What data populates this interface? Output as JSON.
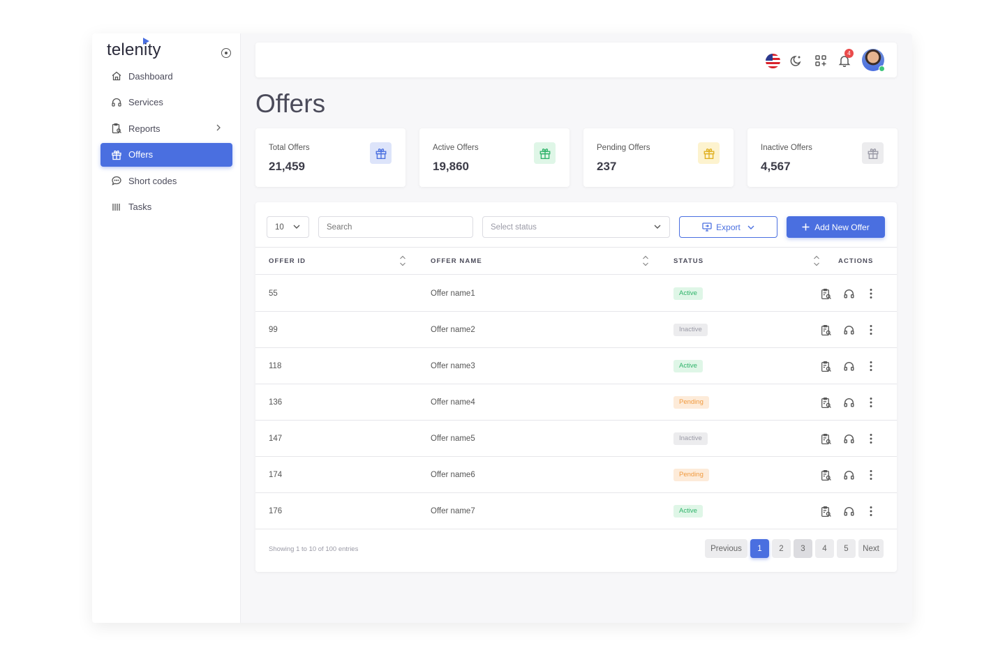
{
  "brand": {
    "name": "telenity"
  },
  "sidebar": {
    "items": [
      {
        "label": "Dashboard",
        "icon": "home-icon"
      },
      {
        "label": "Services",
        "icon": "headset-icon"
      },
      {
        "label": "Reports",
        "icon": "clipboard-search-icon"
      },
      {
        "label": "Offers",
        "icon": "gift-icon",
        "active": true
      },
      {
        "label": "Short codes",
        "icon": "chat-bubble-icon"
      },
      {
        "label": "Tasks",
        "icon": "bars-icon"
      }
    ]
  },
  "topbar": {
    "notification_count": "4"
  },
  "page": {
    "title": "Offers"
  },
  "stats": [
    {
      "label": "Total Offers",
      "value": "21,459",
      "color": "#4a6fe0",
      "bg": "#dde4fa"
    },
    {
      "label": "Active Offers",
      "value": "19,860",
      "color": "#2fb36a",
      "bg": "#dff6e7"
    },
    {
      "label": "Pending Offers",
      "value": "237",
      "color": "#e0b020",
      "bg": "#fdf3cf"
    },
    {
      "label": "Inactive Offers",
      "value": "4,567",
      "color": "#9a9aa6",
      "bg": "#ececee"
    }
  ],
  "controls": {
    "page_size": "10",
    "search_placeholder": "Search",
    "status_placeholder": "Select status",
    "export_label": "Export",
    "add_label": "Add New Offer"
  },
  "table": {
    "columns": [
      "OFFER ID",
      "OFFER NAME",
      "STATUS",
      "ACTIONS"
    ],
    "rows": [
      {
        "id": "55",
        "name": "Offer name1",
        "status": "Active"
      },
      {
        "id": "99",
        "name": "Offer name2",
        "status": "Inactive"
      },
      {
        "id": "118",
        "name": "Offer name3",
        "status": "Active"
      },
      {
        "id": "136",
        "name": "Offer name4",
        "status": "Pending"
      },
      {
        "id": "147",
        "name": "Offer name5",
        "status": "Inactive"
      },
      {
        "id": "174",
        "name": "Offer name6",
        "status": "Pending"
      },
      {
        "id": "176",
        "name": "Offer name7",
        "status": "Active"
      }
    ]
  },
  "pagination": {
    "info": "Showing 1 to 10 of 100 entries",
    "previous": "Previous",
    "pages": [
      "1",
      "2",
      "3",
      "4",
      "5"
    ],
    "current": "1",
    "next": "Next"
  }
}
